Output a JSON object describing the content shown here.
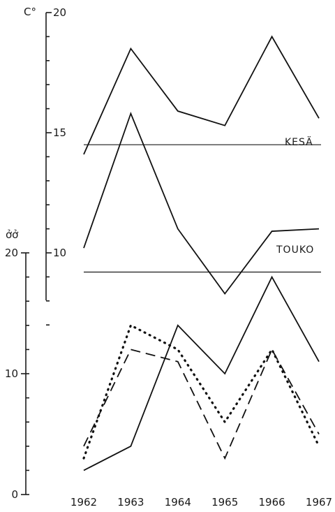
{
  "chart_data": [
    {
      "type": "line",
      "panel": "temperature",
      "ylabel": "C°",
      "ylim": [
        6,
        20
      ],
      "yticks": [
        10,
        15,
        20
      ],
      "categories": [
        "1962",
        "1963",
        "1964",
        "1965",
        "1966",
        "1967"
      ],
      "series": [
        {
          "name": "KESÄ",
          "style": "solid",
          "values": [
            14.1,
            18.5,
            15.9,
            15.3,
            19.0,
            15.6
          ]
        },
        {
          "name": "TOUKO",
          "style": "solid",
          "values": [
            10.2,
            15.8,
            11.0,
            8.3,
            10.9,
            11.0
          ]
        }
      ],
      "reference_lines": [
        {
          "series": "KESÄ",
          "value": 14.5
        },
        {
          "series": "TOUKO",
          "value": 9.2
        }
      ]
    },
    {
      "type": "line",
      "panel": "counts",
      "ylabel": "ởở",
      "ylim": [
        0,
        20
      ],
      "yticks": [
        0,
        10,
        20
      ],
      "categories": [
        "1962",
        "1963",
        "1964",
        "1965",
        "1966",
        "1967"
      ],
      "series": [
        {
          "style": "solid",
          "values": [
            2,
            4,
            14,
            10,
            18,
            11
          ]
        },
        {
          "style": "dashed",
          "values": [
            4,
            12,
            11,
            3,
            12,
            5
          ]
        },
        {
          "style": "dotted",
          "values": [
            3,
            14,
            12,
            6,
            12,
            4
          ]
        }
      ]
    }
  ]
}
